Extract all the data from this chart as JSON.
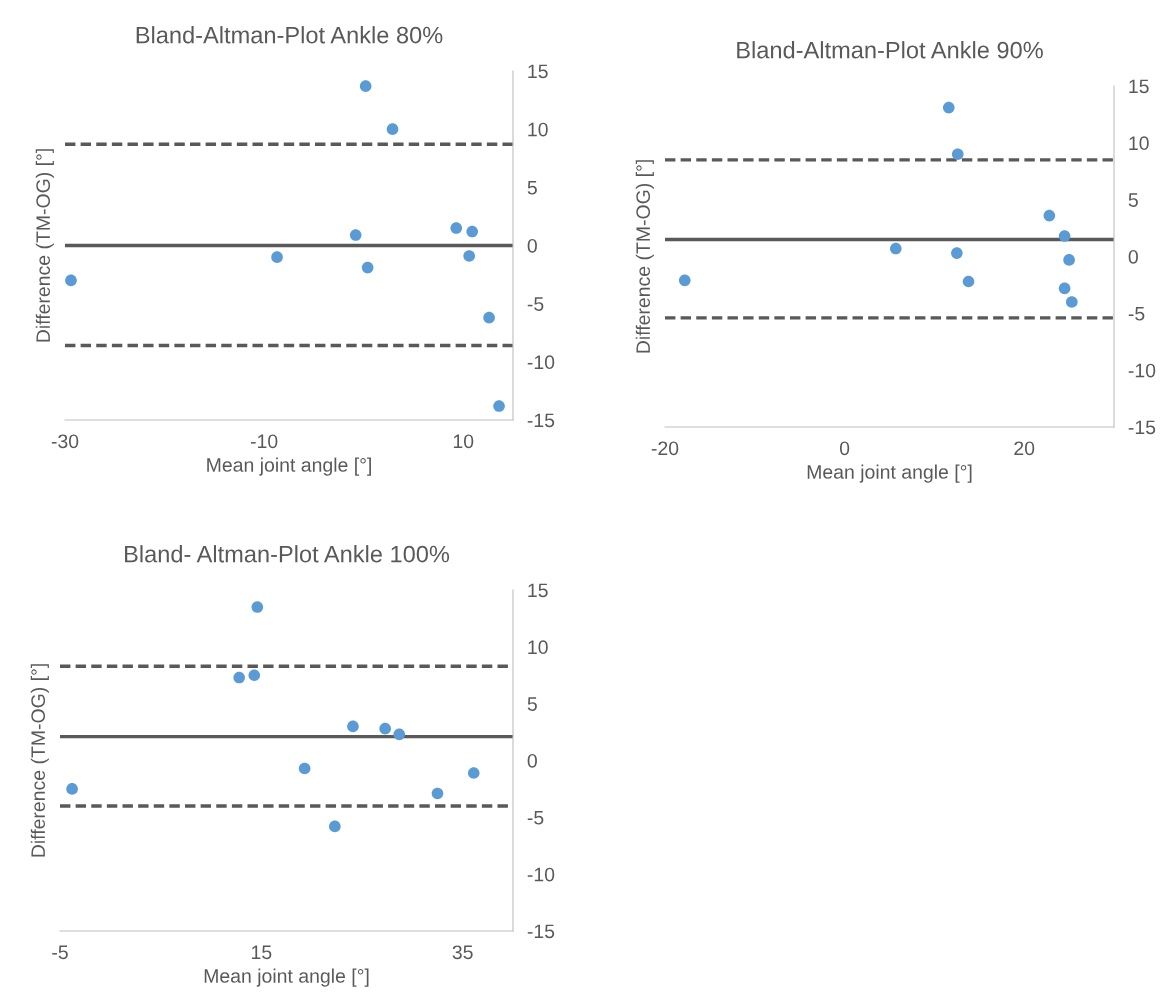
{
  "chart_data": [
    {
      "type": "scatter",
      "title": "Bland-Altman-Plot Ankle 80%",
      "xlabel": "Mean joint angle [°]",
      "ylabel": "Difference (TM-OG) [°]",
      "x": [
        -29.4,
        -8.7,
        -0.8,
        0.2,
        0.4,
        2.9,
        9.3,
        10.9,
        10.6,
        12.6,
        13.6
      ],
      "series": [
        {
          "color": "#5b9bd5",
          "values": [
            -3.0,
            -1.0,
            0.9,
            13.7,
            -1.9,
            10.0,
            1.5,
            1.2,
            -0.9,
            -6.2,
            -13.8
          ]
        }
      ],
      "xlim": [
        -30,
        15
      ],
      "xticks": [
        -30,
        -10,
        10
      ],
      "ylim": [
        -15,
        15
      ],
      "yticks": [
        -15,
        -10,
        -5,
        0,
        5,
        10,
        15
      ],
      "marker": "circle",
      "grid": false,
      "ref_lines": [
        {
          "axis": "y",
          "value": 0.0,
          "color": "#595959",
          "line_style": "solid"
        },
        {
          "axis": "y",
          "value": 8.7,
          "color": "#595959",
          "line_style": "dashed"
        },
        {
          "axis": "y",
          "value": -8.6,
          "color": "#595959",
          "line_style": "dashed"
        }
      ]
    },
    {
      "type": "scatter",
      "title": "Bland-Altman-Plot Ankle 90%",
      "xlabel": "Mean joint angle [°]",
      "ylabel": "Difference (TM-OG) [°]",
      "x": [
        -17.8,
        5.7,
        11.6,
        12.6,
        12.5,
        13.8,
        22.8,
        24.5,
        25.0,
        24.5,
        25.3
      ],
      "series": [
        {
          "color": "#5b9bd5",
          "values": [
            -2.1,
            0.7,
            13.1,
            9.0,
            0.3,
            -2.2,
            3.6,
            1.8,
            -0.3,
            -2.8,
            -4.0
          ]
        }
      ],
      "xlim": [
        -20,
        30
      ],
      "xticks": [
        -20,
        0,
        20
      ],
      "ylim": [
        -15,
        15
      ],
      "yticks": [
        -15,
        -10,
        -5,
        0,
        5,
        10,
        15
      ],
      "marker": "circle",
      "grid": false,
      "ref_lines": [
        {
          "axis": "y",
          "value": 1.5,
          "color": "#595959",
          "line_style": "solid"
        },
        {
          "axis": "y",
          "value": 8.5,
          "color": "#595959",
          "line_style": "dashed"
        },
        {
          "axis": "y",
          "value": -5.4,
          "color": "#595959",
          "line_style": "dashed"
        }
      ]
    },
    {
      "type": "scatter",
      "title": "Bland- Altman-Plot Ankle 100%",
      "xlabel": "Mean joint angle [°]",
      "ylabel": "Difference (TM-OG) [°]",
      "x": [
        -3.8,
        12.8,
        14.3,
        14.6,
        19.3,
        22.3,
        24.1,
        27.3,
        28.7,
        32.5,
        36.1
      ],
      "series": [
        {
          "color": "#5b9bd5",
          "values": [
            -2.5,
            7.3,
            7.5,
            13.5,
            -0.7,
            -5.8,
            3.0,
            2.8,
            2.3,
            -2.9,
            -1.1
          ]
        }
      ],
      "xlim": [
        -5,
        40
      ],
      "xticks": [
        -5,
        15,
        35
      ],
      "ylim": [
        -15,
        15
      ],
      "yticks": [
        -15,
        -10,
        -5,
        0,
        5,
        10,
        15
      ],
      "marker": "circle",
      "grid": false,
      "ref_lines": [
        {
          "axis": "y",
          "value": 2.1,
          "color": "#595959",
          "line_style": "solid"
        },
        {
          "axis": "y",
          "value": 8.3,
          "color": "#595959",
          "line_style": "dashed"
        },
        {
          "axis": "y",
          "value": -4.0,
          "color": "#595959",
          "line_style": "dashed"
        }
      ]
    }
  ]
}
